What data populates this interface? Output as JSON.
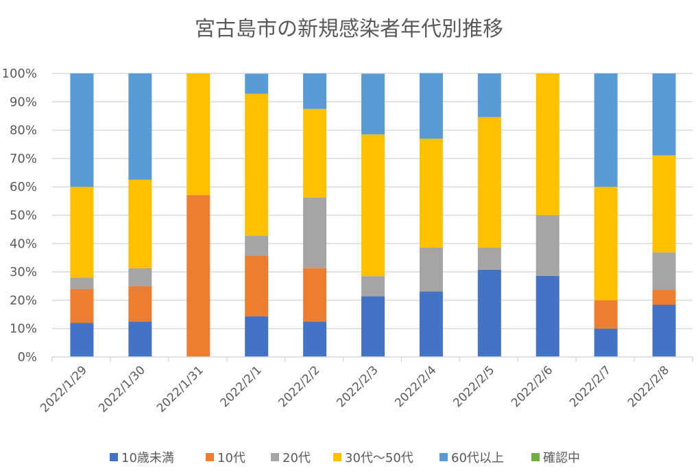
{
  "chart_data": {
    "type": "bar",
    "stacked": "percent",
    "title": "宮古島市の新規感染者年代別推移",
    "xlabel": "",
    "ylabel": "",
    "ylim": [
      0,
      100
    ],
    "y_ticks": [
      "0%",
      "10%",
      "20%",
      "30%",
      "40%",
      "50%",
      "60%",
      "70%",
      "80%",
      "90%",
      "100%"
    ],
    "grid": true,
    "legend_position": "bottom",
    "categories": [
      "2022/1/29",
      "2022/1/30",
      "2022/1/31",
      "2022/2/1",
      "2022/2/2",
      "2022/2/3",
      "2022/2/4",
      "2022/2/5",
      "2022/2/6",
      "2022/2/7",
      "2022/2/8"
    ],
    "series": [
      {
        "name": "10歳未満",
        "color": "#4472C4",
        "values": [
          12.0,
          12.5,
          0,
          14.3,
          12.5,
          21.4,
          23.1,
          30.8,
          28.6,
          10.0,
          18.4
        ]
      },
      {
        "name": "10代",
        "color": "#ED7D31",
        "values": [
          12.0,
          12.5,
          57.1,
          21.4,
          18.75,
          0,
          0,
          0,
          0,
          10.0,
          5.3
        ]
      },
      {
        "name": "20代",
        "color": "#A5A5A5",
        "values": [
          4.0,
          6.25,
          0,
          7.1,
          25.0,
          7.1,
          15.4,
          7.7,
          21.4,
          0,
          13.2
        ]
      },
      {
        "name": "30代〜50代",
        "color": "#FFC000",
        "values": [
          32.0,
          31.25,
          42.9,
          50.0,
          31.25,
          50.0,
          38.5,
          46.1,
          50.0,
          40.0,
          34.2
        ]
      },
      {
        "name": "60代以上",
        "color": "#5B9BD5",
        "values": [
          40.0,
          37.5,
          0,
          7.1,
          12.5,
          21.4,
          23.1,
          15.4,
          0,
          40.0,
          28.9
        ]
      },
      {
        "name": "確認中",
        "color": "#70AD47",
        "values": [
          0,
          0,
          0,
          0,
          0,
          0,
          0,
          0,
          0,
          0,
          0
        ]
      }
    ]
  }
}
